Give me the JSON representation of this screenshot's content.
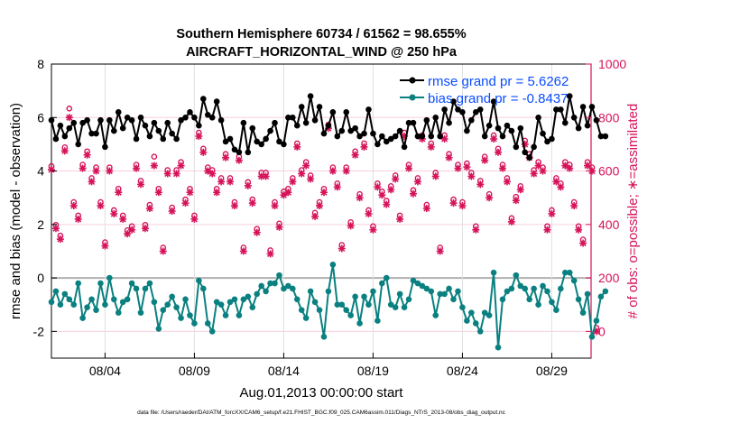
{
  "chart_data": {
    "type": "line",
    "title": "Southern Hemisphere 60734 / 61562 = 98.655%",
    "subtitle": "AIRCRAFT_HORIZONTAL_WIND @ 250 hPa",
    "xlabel": "Aug.01,2013 00:00:00 start",
    "ylabel": "rmse and bias (model - observation)",
    "ylabel_right": "# of obs: o=possible; ∗=assimilated",
    "footer": "data file: /Users/raeder/DAI/ATM_forcXX/CAM6_setup/f.e21.FHIST_BGC.f09_025.CAM6assim.011/Diags_NTrS_2013-08/obs_diag_output.nc",
    "x_unit": "days since Aug.01,2013 00:00:00 (6-hourly)",
    "x_step_days": 0.25,
    "xlim": [
      0,
      30.2
    ],
    "ylim": [
      -3,
      8
    ],
    "ylim_right": [
      -100,
      1000
    ],
    "xticks": [
      3,
      8,
      13,
      18,
      23,
      28
    ],
    "xtick_labels": [
      "08/04",
      "08/09",
      "08/14",
      "08/19",
      "08/24",
      "08/29"
    ],
    "yticks": [
      -2,
      0,
      2,
      4,
      6,
      8
    ],
    "yticks_right": [
      0,
      200,
      400,
      600,
      800,
      1000
    ],
    "grid": true,
    "legend_placement": "top-right",
    "colors": {
      "rmse": "#000000",
      "bias": "#0a8080",
      "obs": "#d6135a",
      "legend_text": "#0a4cff",
      "zero_line": "#b0b0b0"
    },
    "series": [
      {
        "name": "rmse grand pr = 5.6262",
        "axis": "left",
        "values": [
          5.9,
          5.2,
          5.7,
          5.3,
          5.6,
          5.8,
          5.0,
          5.8,
          5.9,
          5.4,
          5.4,
          5.9,
          4.9,
          5.9,
          5.5,
          6.2,
          5.6,
          6.0,
          5.9,
          5.2,
          6.0,
          5.7,
          5.3,
          5.8,
          5.5,
          5.2,
          5.8,
          5.4,
          5.2,
          5.9,
          6.0,
          6.2,
          6.0,
          5.7,
          6.7,
          6.1,
          6.0,
          6.6,
          5.9,
          5.1,
          5.2,
          4.8,
          4.7,
          5.8,
          4.7,
          5.6,
          5.1,
          5.0,
          5.2,
          5.5,
          5.8,
          5.1,
          5.0,
          6.0,
          6.0,
          5.7,
          6.4,
          5.8,
          6.8,
          5.9,
          6.4,
          5.4,
          5.7,
          6.2,
          5.3,
          5.5,
          6.2,
          5.5,
          5.6,
          5.3,
          5.4,
          6.3,
          5.4,
          5.0,
          5.3,
          5.1,
          5.2,
          5.3,
          5.5,
          4.9,
          5.8,
          5.8,
          5.3,
          5.3,
          5.9,
          5.3,
          6.0,
          5.3,
          6.3,
          5.8,
          6.6,
          6.3,
          6.2,
          5.5,
          5.9,
          6.2,
          6.3,
          5.3,
          5.7,
          6.6,
          5.6,
          5.3,
          5.7,
          5.5,
          4.9,
          5.6,
          4.7,
          4.5,
          4.9,
          6.0,
          5.4,
          5.1,
          5.2,
          6.3,
          6.3,
          5.8,
          6.8,
          6.0,
          5.6,
          6.4,
          5.7,
          6.4,
          5.9,
          5.3,
          5.3
        ]
      },
      {
        "name": "bias grand pr = -0.8437",
        "axis": "left",
        "values": [
          -0.9,
          -0.5,
          -1.0,
          -0.6,
          -0.8,
          -1.0,
          -0.2,
          -1.5,
          -1.1,
          -0.8,
          -1.2,
          -0.2,
          -1.0,
          0.0,
          -0.8,
          -1.3,
          -0.9,
          -0.8,
          -0.2,
          -0.4,
          -1.3,
          -0.4,
          -0.2,
          -0.9,
          -1.9,
          -1.2,
          -1.0,
          -0.7,
          -1.1,
          -1.5,
          -0.8,
          -1.4,
          -1.7,
          -0.1,
          -0.4,
          -1.7,
          -2.0,
          -0.9,
          -1.0,
          -1.4,
          -0.9,
          -0.8,
          -1.4,
          -0.8,
          -0.7,
          -1.1,
          -0.6,
          -0.3,
          -0.5,
          -0.2,
          -0.2,
          0.1,
          -0.4,
          -0.3,
          -0.4,
          -0.8,
          -1.2,
          -1.5,
          -0.5,
          -0.9,
          -1.2,
          -2.2,
          -0.5,
          0.5,
          -1.0,
          -1.0,
          -1.2,
          -1.4,
          -0.7,
          -1.7,
          -0.7,
          -1.0,
          -0.5,
          -1.6,
          -0.2,
          0.0,
          -1.0,
          -1.1,
          -0.6,
          -1.1,
          -0.8,
          -0.1,
          -0.2,
          -0.3,
          -0.4,
          -0.5,
          -1.4,
          -0.6,
          -0.6,
          -0.4,
          -0.8,
          -0.5,
          -1.1,
          -1.6,
          -1.3,
          -1.7,
          -2.0,
          -1.3,
          -1.4,
          0.2,
          -2.6,
          -0.8,
          -0.5,
          -0.4,
          0.1,
          -0.3,
          -0.4,
          -0.8,
          -0.4,
          -1.0,
          -0.3,
          -0.5,
          -0.9,
          -1.2,
          -0.4,
          0.2,
          0.2,
          -0.1,
          -0.8,
          -1.3,
          -0.6,
          -2.2,
          -1.6,
          -0.7,
          -0.5
        ]
      },
      {
        "name": "obs assimilated",
        "axis": "right",
        "marker": "*",
        "values": [
          605,
          385,
          345,
          675,
          800,
          470,
          420,
          610,
          660,
          560,
          600,
          470,
          320,
          600,
          440,
          520,
          420,
          365,
          380,
          610,
          550,
          385,
          460,
          620,
          520,
          300,
          590,
          450,
          590,
          620,
          480,
          520,
          420,
          730,
          670,
          600,
          590,
          520,
          560,
          650,
          560,
          470,
          640,
          300,
          545,
          480,
          370,
          580,
          580,
          290,
          470,
          390,
          510,
          520,
          560,
          690,
          590,
          620,
          570,
          430,
          470,
          520,
          760,
          600,
          540,
          310,
          600,
          395,
          660,
          500,
          690,
          440,
          380,
          540,
          510,
          475,
          530,
          570,
          420,
          730,
          610,
          515,
          560,
          720,
          460,
          690,
          580,
          300,
          720,
          650,
          480,
          610,
          470,
          615,
          580,
          380,
          550,
          640,
          500,
          720,
          670,
          610,
          560,
          410,
          490,
          530,
          700,
          650,
          590,
          620,
          600,
          380,
          440,
          560,
          540,
          620,
          610,
          470,
          380,
          330,
          620,
          600,
          0
        ]
      },
      {
        "name": "obs possible",
        "axis": "right",
        "marker": "o",
        "values": [
          605,
          385,
          345,
          675,
          820,
          470,
          420,
          610,
          660,
          560,
          600,
          470,
          320,
          600,
          440,
          520,
          420,
          365,
          380,
          610,
          550,
          385,
          460,
          640,
          520,
          300,
          590,
          450,
          590,
          620,
          480,
          520,
          420,
          730,
          670,
          600,
          590,
          520,
          560,
          650,
          560,
          470,
          640,
          300,
          545,
          480,
          370,
          580,
          580,
          290,
          470,
          390,
          510,
          520,
          560,
          690,
          590,
          620,
          570,
          430,
          470,
          520,
          760,
          600,
          540,
          310,
          600,
          395,
          660,
          500,
          690,
          440,
          380,
          540,
          510,
          475,
          530,
          570,
          420,
          730,
          610,
          515,
          560,
          720,
          460,
          690,
          580,
          300,
          720,
          650,
          480,
          610,
          470,
          615,
          580,
          380,
          550,
          640,
          500,
          720,
          670,
          610,
          560,
          410,
          490,
          530,
          700,
          650,
          590,
          620,
          600,
          380,
          440,
          560,
          540,
          620,
          610,
          470,
          380,
          330,
          620,
          600,
          0
        ]
      }
    ]
  }
}
